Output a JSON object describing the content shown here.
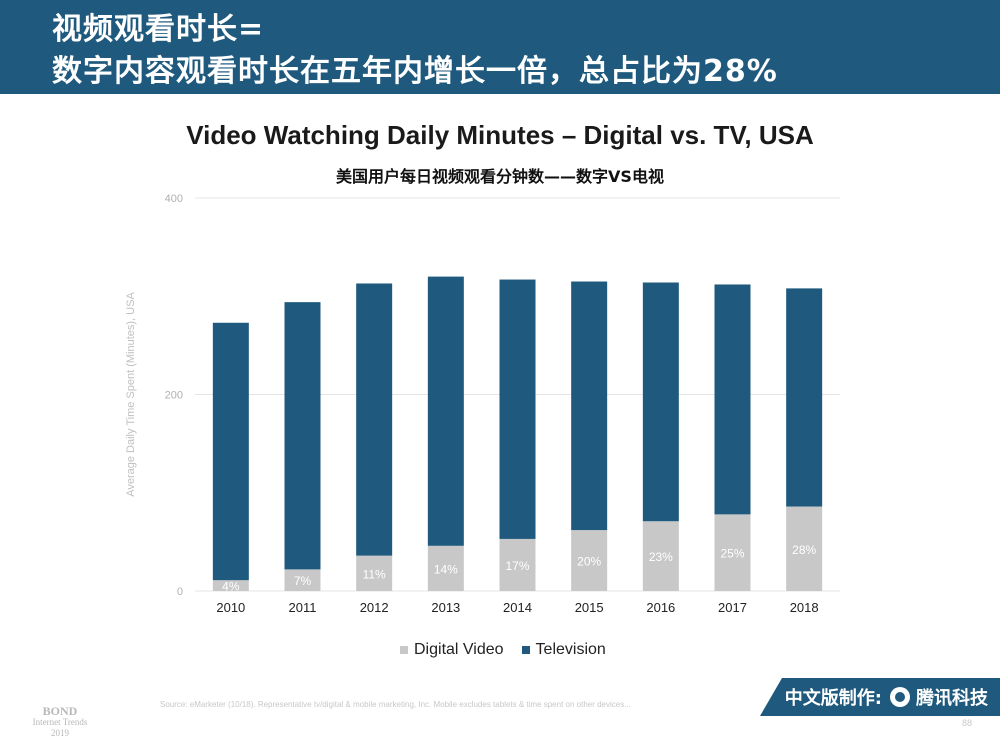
{
  "header": {
    "title_line1": "视频观看时长=",
    "title_line2": "数字内容观看时长在五年内增长一倍，总占比为28%"
  },
  "chart_data": {
    "type": "bar",
    "stacked": true,
    "title": "Video Watching Daily Minutes – Digital vs. TV, USA",
    "subtitle": "美国用户每日视频观看分钟数——数字VS电视",
    "ylabel": "Average Daily Time Spent (Minutes), USA",
    "xlabel": "",
    "ylim": [
      0,
      400
    ],
    "yticks": [
      "0",
      "200",
      "400"
    ],
    "categories": [
      "2010",
      "2011",
      "2012",
      "2013",
      "2014",
      "2015",
      "2016",
      "2017",
      "2018"
    ],
    "series": [
      {
        "name": "Digital Video",
        "color": "#c8c8c8",
        "values": [
          11,
          22,
          36,
          46,
          53,
          62,
          71,
          78,
          86
        ],
        "labels": [
          "4%",
          "7%",
          "11%",
          "14%",
          "17%",
          "20%",
          "23%",
          "25%",
          "28%"
        ]
      },
      {
        "name": "Television",
        "color": "#1f5a7e",
        "values": [
          262,
          272,
          277,
          274,
          264,
          253,
          243,
          234,
          222
        ]
      }
    ],
    "grid": true,
    "legend_position": "bottom"
  },
  "footer": {
    "source": "Source: eMarketer (10/18). Representative tv/digital & mobile marketing, Inc. Mobile excludes tablets & time spent on other devices...",
    "bond_line1": "BOND",
    "bond_line2": "Internet Trends",
    "bond_line3": "2019",
    "brand_label": "中文版制作:",
    "brand_name": "腾讯科技",
    "page_number": "88"
  }
}
